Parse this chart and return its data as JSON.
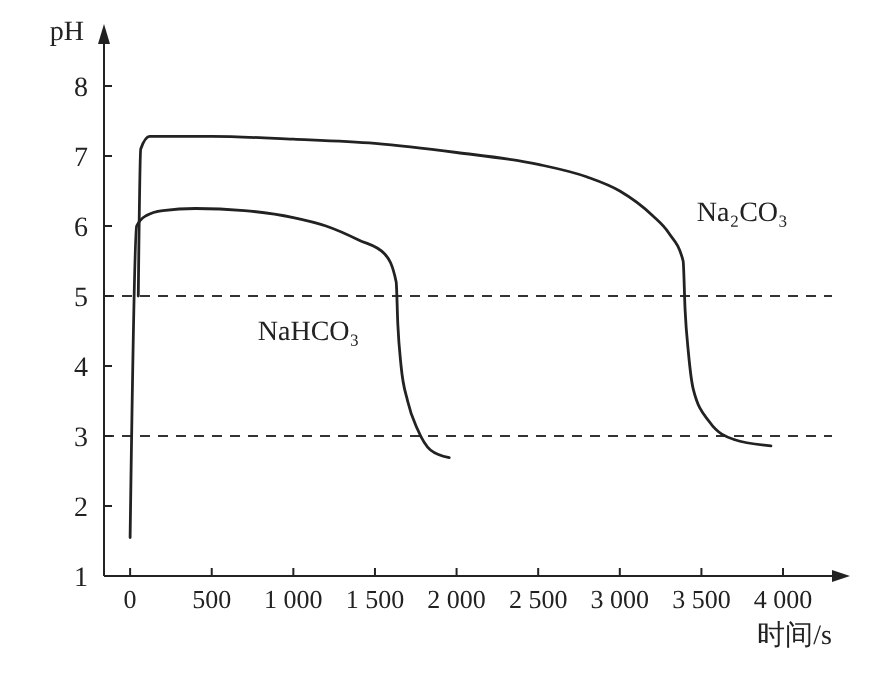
{
  "chart_data": {
    "type": "line",
    "xlabel": "时间/s",
    "ylabel": "pH",
    "xlim": [
      -160,
      4300
    ],
    "ylim": [
      1,
      8.6
    ],
    "xticks": [
      0,
      500,
      {
        "value": 1000,
        "label": "1 000"
      },
      {
        "value": 1500,
        "label": "1 500"
      },
      {
        "value": 2000,
        "label": "2 000"
      },
      {
        "value": 2500,
        "label": "2 500"
      },
      {
        "value": 3000,
        "label": "3 000"
      },
      {
        "value": 3500,
        "label": "3 500"
      },
      {
        "value": 4000,
        "label": "4 000"
      }
    ],
    "yticks": [
      1,
      2,
      3,
      4,
      5,
      6,
      7,
      8
    ],
    "series": [
      {
        "name": "NaHCO₃",
        "color": "#222222",
        "x": [
          0,
          40,
          100,
          200,
          400,
          700,
          1000,
          1200,
          1400,
          1560,
          1630,
          1640,
          1660,
          1700,
          1760,
          1840,
          1955
        ],
        "values": [
          1.55,
          6.0,
          6.15,
          6.22,
          6.25,
          6.22,
          6.12,
          6.0,
          5.8,
          5.6,
          5.2,
          4.6,
          4.0,
          3.5,
          3.1,
          2.8,
          2.69
        ]
      },
      {
        "name": "Na₂CO₃",
        "color": "#222222",
        "x": [
          50,
          65,
          120,
          500,
          1000,
          1500,
          2000,
          2500,
          2800,
          3000,
          3200,
          3300,
          3388,
          3400,
          3420,
          3450,
          3550,
          3700,
          3926
        ],
        "values": [
          5.0,
          7.1,
          7.28,
          7.28,
          7.24,
          7.18,
          7.05,
          6.88,
          6.7,
          6.5,
          6.15,
          5.9,
          5.5,
          4.8,
          4.2,
          3.67,
          3.2,
          2.95,
          2.86
        ]
      }
    ],
    "ref_lines": [
      {
        "axis": "y",
        "value": 5,
        "line_style": "dashed"
      },
      {
        "axis": "y",
        "value": 3,
        "line_style": "dashed"
      }
    ],
    "marker": "none",
    "line_style": "solid",
    "grid": false
  }
}
